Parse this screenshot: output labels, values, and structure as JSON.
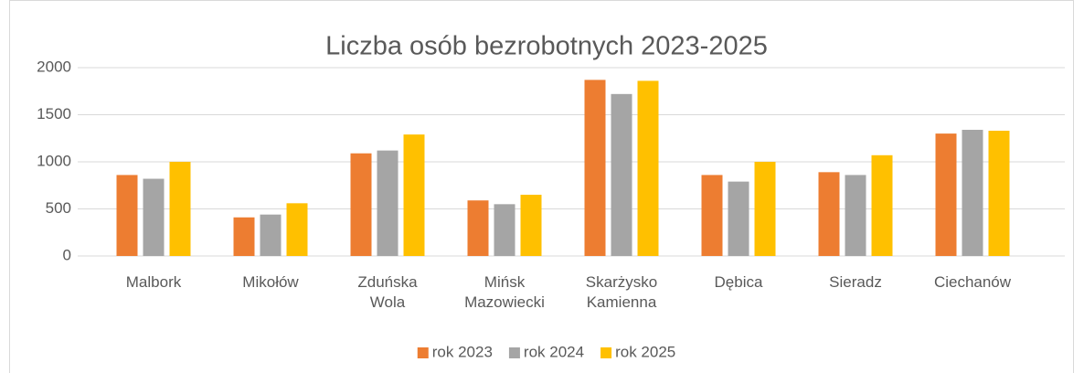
{
  "chart_data": {
    "type": "bar",
    "title": "Liczba osób bezrobotnych 2023-2025",
    "categories": [
      "Malbork",
      "Mikołów",
      "Zduńska Wola",
      "Mińsk Mazowiecki",
      "Skarżysko Kamienna",
      "Dębica",
      "Sieradz",
      "Ciechanów"
    ],
    "series": [
      {
        "name": "rok 2023",
        "color": "#ED7D31",
        "values": [
          860,
          410,
          1090,
          590,
          1870,
          860,
          890,
          1300
        ]
      },
      {
        "name": "rok 2024",
        "color": "#A5A5A5",
        "values": [
          820,
          440,
          1120,
          550,
          1720,
          790,
          860,
          1340
        ]
      },
      {
        "name": "rok 2025",
        "color": "#FFC000",
        "values": [
          1000,
          560,
          1290,
          650,
          1860,
          1000,
          1070,
          1330
        ]
      }
    ],
    "ylim": [
      0,
      2000
    ],
    "yticks": [
      0,
      500,
      1000,
      1500,
      2000
    ],
    "grid": true,
    "legend": "bottom"
  }
}
